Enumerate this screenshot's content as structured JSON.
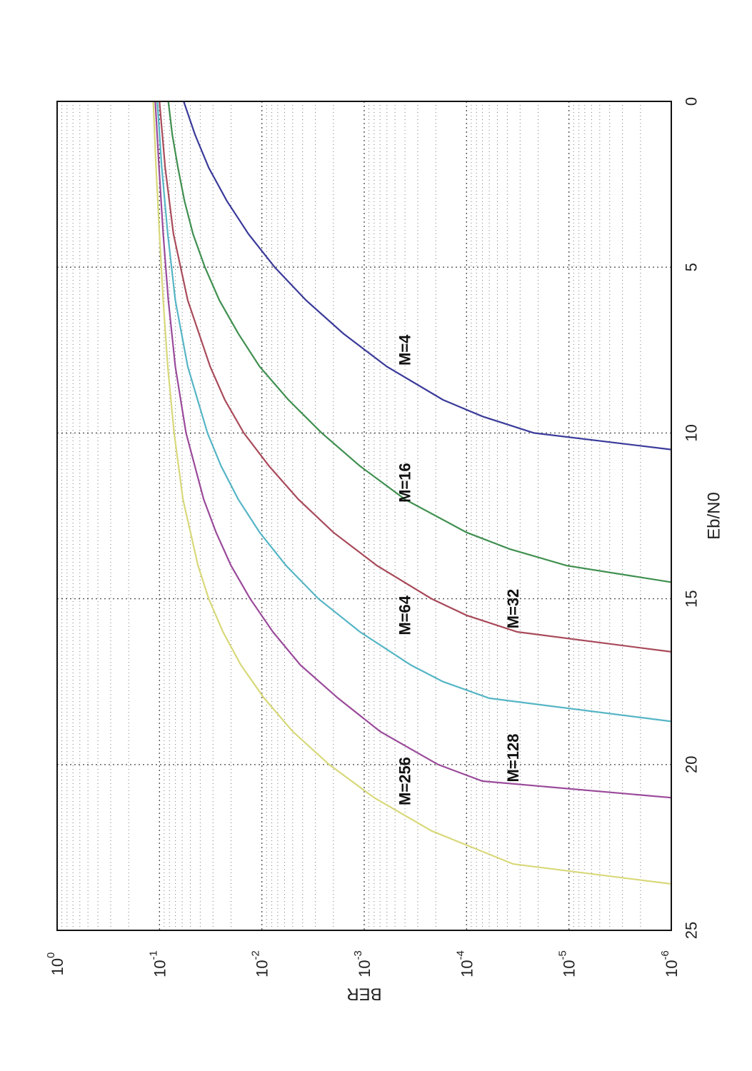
{
  "chart_data": {
    "type": "line",
    "orientation": "rotated-90-clockwise",
    "xlabel": "Eb/N0",
    "ylabel": "BER",
    "xlim": [
      0,
      25
    ],
    "ylim": [
      1e-06,
      1
    ],
    "yscale": "log",
    "grid": true,
    "xticks": [
      "0",
      "5",
      "10",
      "15",
      "20",
      "25"
    ],
    "yticks": [
      {
        "base": "10",
        "exp": "0"
      },
      {
        "base": "10",
        "exp": "-1"
      },
      {
        "base": "10",
        "exp": "-2"
      },
      {
        "base": "10",
        "exp": "-3"
      },
      {
        "base": "10",
        "exp": "-4"
      },
      {
        "base": "10",
        "exp": "-5"
      },
      {
        "base": "10",
        "exp": "-6"
      }
    ],
    "series": [
      {
        "name": "M=4",
        "color": "#3a3a9a",
        "label_at": [
          7.5,
          0.0004
        ],
        "x": [
          0,
          1,
          2,
          3,
          4,
          5,
          6,
          7,
          8,
          9,
          9.5,
          10,
          10.5
        ],
        "y": [
          0.058,
          0.045,
          0.033,
          0.022,
          0.0135,
          0.0075,
          0.0037,
          0.0016,
          0.0006,
          0.00017,
          7e-05,
          2.2e-05,
          1e-06
        ]
      },
      {
        "name": "M=16",
        "color": "#3f8f4f",
        "label_at": [
          11.5,
          0.0004
        ],
        "x": [
          0,
          1,
          2,
          3,
          4,
          5,
          6,
          7,
          8,
          9,
          10,
          11,
          12,
          13,
          13.5,
          14,
          14.5
        ],
        "y": [
          0.082,
          0.075,
          0.066,
          0.057,
          0.047,
          0.036,
          0.026,
          0.017,
          0.0105,
          0.0055,
          0.0026,
          0.0011,
          0.0004,
          0.0001,
          3.8e-05,
          1.05e-05,
          1e-06
        ]
      },
      {
        "name": "M=32",
        "color": "#a84a5a",
        "label_at": [
          15.3,
          3.5e-05
        ],
        "x": [
          0,
          2,
          4,
          6,
          8,
          9,
          10,
          11,
          12,
          13,
          14,
          15,
          15.5,
          16,
          16.6
        ],
        "y": [
          0.1,
          0.088,
          0.073,
          0.053,
          0.032,
          0.023,
          0.015,
          0.0085,
          0.0044,
          0.002,
          0.00075,
          0.00022,
          0.0001,
          3.2e-05,
          1e-06
        ]
      },
      {
        "name": "M=64",
        "color": "#55b5c5",
        "label_at": [
          15.5,
          0.0004
        ],
        "x": [
          0,
          2,
          4,
          6,
          8,
          10,
          11,
          12,
          13,
          14,
          15,
          16,
          17,
          17.5,
          18,
          18.7
        ],
        "y": [
          0.105,
          0.095,
          0.083,
          0.07,
          0.053,
          0.034,
          0.025,
          0.017,
          0.0105,
          0.0058,
          0.0028,
          0.0011,
          0.00035,
          0.00017,
          6e-05,
          1e-06
        ]
      },
      {
        "name": "M=128",
        "color": "#9a4a9a",
        "label_at": [
          19.8,
          3.5e-05
        ],
        "x": [
          0,
          2,
          4,
          6,
          8,
          10,
          12,
          13,
          14,
          15,
          16,
          17,
          18,
          19,
          20,
          20.5,
          21
        ],
        "y": [
          0.11,
          0.101,
          0.092,
          0.082,
          0.07,
          0.055,
          0.037,
          0.028,
          0.02,
          0.013,
          0.0078,
          0.0042,
          0.0018,
          0.0007,
          0.00019,
          7e-05,
          1e-06
        ]
      },
      {
        "name": "M=256",
        "color": "#d8d87a",
        "label_at": [
          20.5,
          0.0004
        ],
        "x": [
          0,
          2,
          4,
          6,
          8,
          10,
          12,
          14,
          15,
          16,
          17,
          18,
          19,
          20,
          21,
          22,
          23,
          23.6
        ],
        "y": [
          0.115,
          0.108,
          0.1,
          0.092,
          0.083,
          0.072,
          0.059,
          0.042,
          0.033,
          0.024,
          0.016,
          0.0095,
          0.005,
          0.0022,
          0.0008,
          0.00022,
          3.5e-05,
          1e-06
        ]
      }
    ]
  }
}
